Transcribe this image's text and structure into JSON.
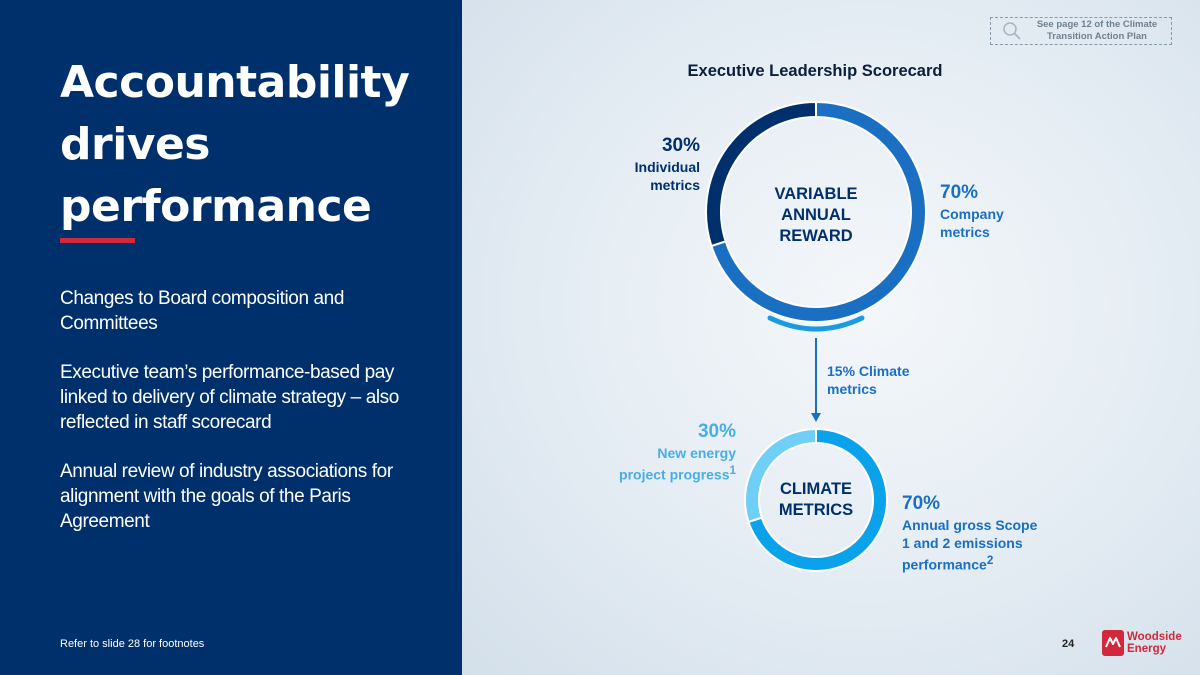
{
  "headline": [
    "Accountability",
    "drives",
    "performance"
  ],
  "bullets": [
    "Changes to Board composition and Committees",
    "Executive team’s performance-based pay linked to delivery of climate strategy – also reflected in staff scorecard",
    "Annual review of industry associations for alignment with the goals of the Paris Agreement"
  ],
  "footnote": "Refer to slide 28 for footnotes",
  "callout": "See page 12 of the Climate Transition Action Plan",
  "page_number": "24",
  "logo": {
    "line1": "Woodside",
    "line2": "Energy"
  },
  "colors": {
    "navy": "#00306b",
    "company_blue": "#1a6fc2",
    "climate_blue": "#0aa2ea",
    "climate_light": "#6fcff7",
    "accent_red": "#d2283c"
  },
  "chart_data": [
    {
      "type": "pie",
      "title": "Executive Leadership Scorecard",
      "center_label": [
        "VARIABLE",
        "ANNUAL",
        "REWARD"
      ],
      "slices": [
        {
          "label_lines": [
            "Company",
            "metrics"
          ],
          "value": 70,
          "value_label": "70%"
        },
        {
          "label_lines": [
            "Individual",
            "metrics"
          ],
          "value": 30,
          "value_label": "30%"
        }
      ]
    },
    {
      "type": "pie",
      "center_label": [
        "CLIMATE",
        "METRICS"
      ],
      "link_label": [
        "15% Climate",
        "metrics"
      ],
      "slices": [
        {
          "label_lines": [
            "Annual gross Scope",
            "1 and 2 emissions",
            "performance"
          ],
          "footnote_mark": "2",
          "value": 70,
          "value_label": "70%"
        },
        {
          "label_lines": [
            "New energy",
            "project progress"
          ],
          "footnote_mark": "1",
          "value": 30,
          "value_label": "30%"
        }
      ]
    }
  ]
}
